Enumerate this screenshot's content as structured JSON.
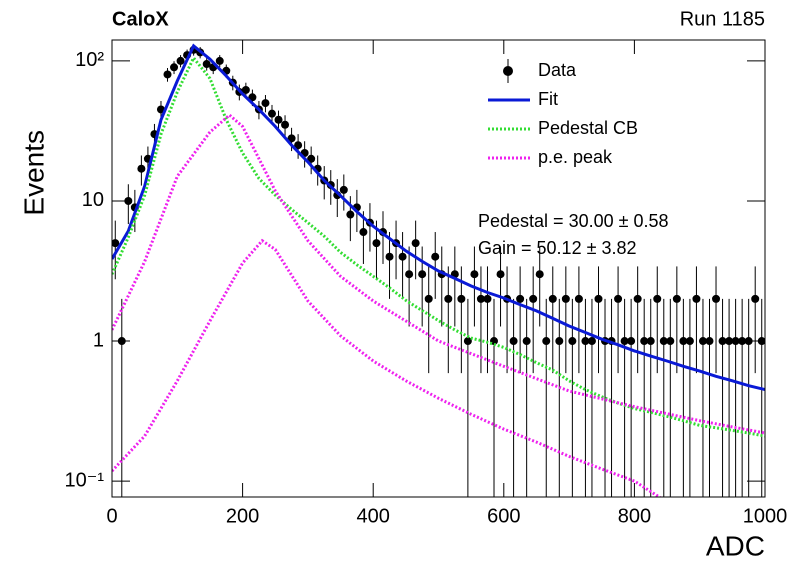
{
  "chart_data": {
    "type": "errorbar",
    "title": "CaloX",
    "subtitle": "Run 1185",
    "x_label": "ADC",
    "y_label": "Events",
    "annotations": [
      "Pedestal = 30.00 ± 0.58",
      "Gain = 50.12 ± 3.82"
    ],
    "log_y": true,
    "legend": "top-right",
    "xlim": [
      0,
      1000
    ],
    "xticks": [
      0,
      200,
      400,
      600,
      800,
      1000
    ],
    "ylim": [
      0.077,
      141
    ],
    "yticks": [
      {
        "value": 0.1,
        "label": "10⁻¹"
      },
      1,
      10,
      {
        "value": 100,
        "label": "10²"
      }
    ],
    "series": [
      {
        "name": "Data",
        "type": "errorbar",
        "color": "#000000",
        "x": [
          5,
          15,
          25,
          35,
          45,
          55,
          65,
          75,
          85,
          95,
          105,
          115,
          125,
          135,
          145,
          155,
          165,
          175,
          185,
          195,
          205,
          215,
          225,
          235,
          245,
          255,
          265,
          275,
          285,
          295,
          305,
          315,
          325,
          335,
          345,
          355,
          365,
          375,
          385,
          395,
          405,
          415,
          425,
          435,
          445,
          455,
          465,
          475,
          485,
          495,
          505,
          515,
          525,
          535,
          545,
          555,
          565,
          575,
          585,
          595,
          605,
          615,
          625,
          635,
          645,
          655,
          665,
          675,
          685,
          695,
          705,
          715,
          725,
          735,
          745,
          755,
          765,
          775,
          785,
          795,
          805,
          815,
          825,
          835,
          845,
          855,
          865,
          875,
          885,
          895,
          905,
          915,
          925,
          935,
          945,
          955,
          965,
          975,
          985,
          995
        ],
        "values": [
          5,
          1,
          10,
          9,
          17,
          20,
          30,
          45,
          80,
          90,
          100,
          110,
          120,
          115,
          95,
          90,
          100,
          85,
          70,
          60,
          62,
          55,
          45,
          50,
          42,
          38,
          35,
          28,
          25,
          22,
          20,
          17,
          14,
          13,
          11,
          12,
          8,
          9,
          6,
          7,
          5,
          6,
          4,
          5,
          4,
          3,
          5,
          3,
          2,
          4,
          3,
          2,
          3,
          2,
          1,
          3,
          2,
          2,
          1,
          3,
          2,
          1,
          2,
          1,
          2,
          3,
          1,
          2,
          1,
          2,
          1,
          2,
          1,
          1,
          2,
          1,
          1,
          2,
          1,
          1,
          2,
          1,
          1,
          2,
          1,
          1,
          2,
          1,
          1,
          2,
          1,
          1,
          2,
          1,
          1,
          1,
          1,
          1,
          2,
          1
        ],
        "errors": [
          2.24,
          1,
          3.16,
          3,
          4.12,
          4.47,
          5.48,
          6.71,
          8.94,
          9.49,
          10,
          10.49,
          10.95,
          10.72,
          9.75,
          9.49,
          10,
          9.22,
          8.37,
          7.75,
          7.87,
          7.42,
          6.71,
          7.07,
          6.48,
          6.16,
          5.92,
          5.29,
          5,
          4.69,
          4.47,
          4.12,
          3.74,
          3.61,
          3.32,
          3.46,
          2.83,
          3,
          2.45,
          2.65,
          2.24,
          2.45,
          2,
          2.24,
          2,
          1.73,
          2.24,
          1.73,
          1.41,
          2,
          1.73,
          1.41,
          1.73,
          1.41,
          1,
          1.73,
          1.41,
          1.41,
          1,
          1.73,
          1.41,
          1,
          1.41,
          1,
          1.41,
          1.73,
          1,
          1.41,
          1,
          1.41,
          1,
          1.41,
          1,
          1,
          1.41,
          1,
          1,
          1.41,
          1,
          1,
          1.41,
          1,
          1,
          1.41,
          1,
          1,
          1.41,
          1,
          1,
          1.41,
          1,
          1,
          1.41,
          1,
          1,
          1,
          1,
          1,
          1.41,
          1
        ]
      },
      {
        "name": "Fit",
        "type": "line",
        "color": "#0a1ad6",
        "x": [
          0,
          25,
          50,
          75,
          100,
          125,
          150,
          175,
          200,
          225,
          250,
          275,
          300,
          325,
          350,
          375,
          400,
          425,
          450,
          475,
          500,
          525,
          550,
          575,
          600,
          625,
          650,
          675,
          700,
          725,
          750,
          775,
          800,
          825,
          850,
          875,
          900,
          925,
          950,
          975,
          1000
        ],
        "values": [
          3.85,
          6.1,
          12.8,
          38,
          72,
          128,
          103,
          78,
          58,
          45,
          34,
          25,
          19,
          14,
          10.9,
          8.4,
          6.6,
          5.4,
          4.4,
          3.7,
          3.16,
          2.8,
          2.47,
          2.22,
          2.03,
          1.82,
          1.64,
          1.45,
          1.28,
          1.15,
          1.03,
          0.94,
          0.85,
          0.78,
          0.72,
          0.66,
          0.61,
          0.56,
          0.52,
          0.48,
          0.45
        ]
      },
      {
        "name": "Pedestal CB",
        "type": "dotted",
        "color": "#33dd33",
        "x": [
          0,
          25,
          50,
          75,
          100,
          125,
          150,
          175,
          200,
          225,
          250,
          275,
          300,
          325,
          350,
          375,
          400,
          425,
          450,
          475,
          500,
          525,
          550,
          575,
          600,
          625,
          650,
          675,
          700,
          725,
          750,
          775,
          800,
          825,
          850,
          875,
          900,
          925,
          950,
          975,
          1000
        ],
        "values": [
          3,
          5.5,
          11,
          30,
          60,
          105,
          75,
          38,
          22,
          14.5,
          11,
          8.7,
          7,
          5.6,
          4.3,
          3.5,
          2.9,
          2.4,
          1.95,
          1.65,
          1.4,
          1.2,
          1.05,
          0.98,
          0.9,
          0.8,
          0.7,
          0.62,
          0.52,
          0.45,
          0.4,
          0.36,
          0.33,
          0.31,
          0.29,
          0.27,
          0.25,
          0.24,
          0.23,
          0.22,
          0.21
        ]
      },
      {
        "name": "p.e. peak",
        "type": "dotted",
        "color": "#ee22ee",
        "x": [
          0,
          50,
          100,
          150,
          180,
          200,
          250,
          300,
          350,
          400,
          450,
          500,
          600,
          700,
          800,
          900,
          1000
        ],
        "values": [
          1.2,
          3.7,
          15,
          31,
          41,
          34,
          11.8,
          5.2,
          2.9,
          1.93,
          1.39,
          1,
          0.66,
          0.44,
          0.34,
          0.27,
          0.22
        ]
      },
      {
        "type": "dotted",
        "color": "#ee22ee",
        "x": [
          0,
          50,
          100,
          150,
          200,
          230,
          250,
          300,
          350,
          400,
          450,
          500,
          550,
          600,
          650,
          700,
          750,
          800,
          840
        ],
        "values": [
          0.118,
          0.21,
          0.52,
          1.39,
          3.6,
          5.2,
          4.5,
          1.93,
          1.09,
          0.72,
          0.52,
          0.39,
          0.3,
          0.235,
          0.19,
          0.15,
          0.122,
          0.1,
          0.076
        ]
      }
    ]
  }
}
